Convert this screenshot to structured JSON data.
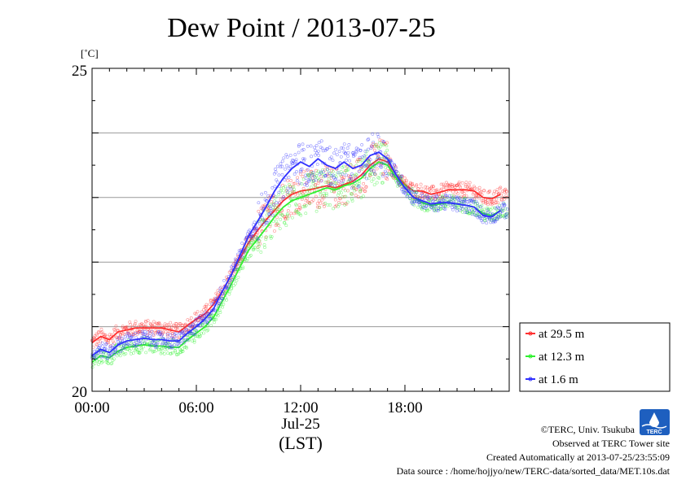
{
  "chart_data": {
    "type": "line",
    "title": "Dew Point / 2013-07-25",
    "ylabel": "[˚C]",
    "xlabel": "(LST)",
    "date_label": "Jul-25",
    "ylim": [
      20,
      25
    ],
    "xlim_hours": [
      0,
      24
    ],
    "x_ticks": [
      "00:00",
      "06:00",
      "12:00",
      "18:00"
    ],
    "y_ticks": [
      "20",
      "25"
    ],
    "grid": "horizontal",
    "legend_position": "lower-right",
    "x_hours": [
      0,
      0.5,
      1,
      1.5,
      2,
      2.5,
      3,
      3.5,
      4,
      4.5,
      5,
      5.5,
      6,
      6.5,
      7,
      7.5,
      8,
      8.5,
      9,
      9.5,
      10,
      10.5,
      11,
      11.5,
      12,
      12.5,
      13,
      13.5,
      14,
      14.5,
      15,
      15.5,
      16,
      16.5,
      17,
      17.5,
      18,
      18.5,
      19,
      19.5,
      20,
      20.5,
      21,
      21.5,
      22,
      22.5,
      23,
      23.5
    ],
    "series": [
      {
        "name": "at 29.5 m",
        "color": "#ff3030",
        "values": [
          20.75,
          20.85,
          20.8,
          20.92,
          20.95,
          20.98,
          20.98,
          20.98,
          20.98,
          20.95,
          20.92,
          21.02,
          21.12,
          21.2,
          21.35,
          21.55,
          21.8,
          22.05,
          22.3,
          22.48,
          22.65,
          22.8,
          22.95,
          23.05,
          23.1,
          23.12,
          23.15,
          23.18,
          23.15,
          23.2,
          23.25,
          23.35,
          23.5,
          23.6,
          23.55,
          23.35,
          23.2,
          23.1,
          23.1,
          23.05,
          23.08,
          23.12,
          23.12,
          23.12,
          23.1,
          23.0,
          22.98,
          23.05
        ]
      },
      {
        "name": "at 12.3 m",
        "color": "#30f030",
        "values": [
          20.45,
          20.55,
          20.52,
          20.62,
          20.68,
          20.7,
          20.72,
          20.7,
          20.7,
          20.68,
          20.68,
          20.8,
          20.9,
          21.0,
          21.15,
          21.4,
          21.65,
          21.92,
          22.18,
          22.35,
          22.52,
          22.7,
          22.85,
          22.95,
          23.0,
          23.05,
          23.1,
          23.15,
          23.12,
          23.18,
          23.22,
          23.3,
          23.45,
          23.55,
          23.5,
          23.3,
          23.15,
          23.0,
          22.92,
          22.88,
          22.9,
          22.92,
          22.9,
          22.88,
          22.85,
          22.75,
          22.72,
          22.8
        ]
      },
      {
        "name": "at 1.6 m",
        "color": "#3030ff",
        "values": [
          20.55,
          20.65,
          20.6,
          20.72,
          20.78,
          20.8,
          20.82,
          20.8,
          20.8,
          20.78,
          20.78,
          20.9,
          21.0,
          21.12,
          21.28,
          21.55,
          21.8,
          22.1,
          22.4,
          22.62,
          22.85,
          23.1,
          23.3,
          23.45,
          23.55,
          23.48,
          23.6,
          23.5,
          23.45,
          23.55,
          23.45,
          23.5,
          23.65,
          23.7,
          23.6,
          23.35,
          23.15,
          23.0,
          22.95,
          22.9,
          22.92,
          22.92,
          22.9,
          22.88,
          22.85,
          22.72,
          22.7,
          22.8
        ]
      }
    ]
  },
  "legend": [
    {
      "label": "at 29.5 m",
      "color": "#ff3030"
    },
    {
      "label": "at 12.3 m",
      "color": "#30f030"
    },
    {
      "label": "at 1.6 m",
      "color": "#3030ff"
    }
  ],
  "logo": {
    "text": "TERC",
    "color": "#1e5fbf"
  },
  "footer": {
    "copyright": "©TERC, Univ. Tsukuba",
    "observed": "Observed at TERC Tower site",
    "created": "Created Automatically at 2013-07-25/23:55:09",
    "source": "Data source : /home/hojjyo/new/TERC-data/sorted_data/MET.10s.dat"
  }
}
